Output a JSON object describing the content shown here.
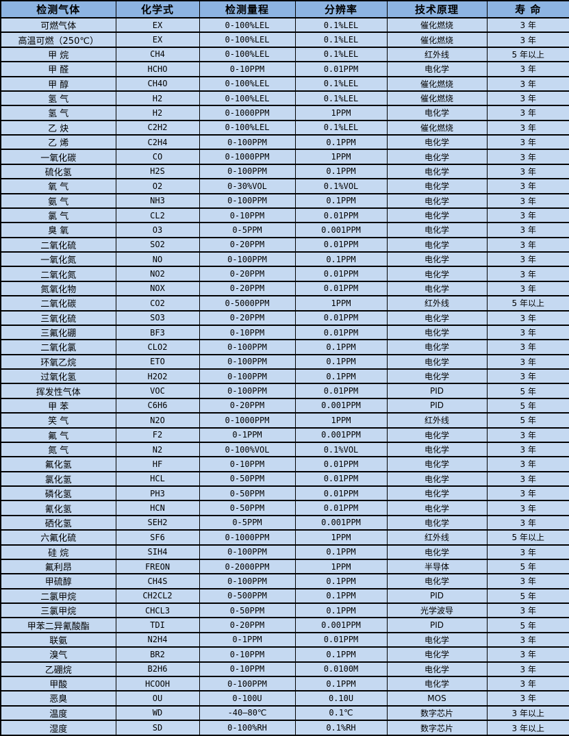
{
  "colors": {
    "header_bg": "#8db4e2",
    "row_bg": "#c5d9f1",
    "border": "#000000",
    "text": "#000000"
  },
  "table": {
    "headers": [
      "检测气体",
      "化学式",
      "检测量程",
      "分辨率",
      "技术原理",
      "寿 命"
    ],
    "column_names": [
      "gas-name",
      "formula",
      "range",
      "resolution",
      "principle",
      "lifespan"
    ],
    "rows": [
      [
        "可燃气体",
        "EX",
        "0-100%LEL",
        "0.1%LEL",
        "催化燃烧",
        "3 年"
      ],
      [
        "高温可燃（250℃）",
        "EX",
        "0-100%LEL",
        "0.1%LEL",
        "催化燃烧",
        "3 年"
      ],
      [
        "甲 烷",
        "CH4",
        "0-100%LEL",
        "0.1%LEL",
        "红外线",
        "5 年以上"
      ],
      [
        "甲 醛",
        "HCHO",
        "0-10PPM",
        "0.01PPM",
        "电化学",
        "3 年"
      ],
      [
        "甲 醇",
        "CH4O",
        "0-100%LEL",
        "0.1%LEL",
        "催化燃烧",
        "3 年"
      ],
      [
        "氢 气",
        "H2",
        "0-100%LEL",
        "0.1%LEL",
        "催化燃烧",
        "3 年"
      ],
      [
        "氢 气",
        "H2",
        "0-1000PPM",
        "1PPM",
        "电化学",
        "3 年"
      ],
      [
        "乙 炔",
        "C2H2",
        "0-100%LEL",
        "0.1%LEL",
        "催化燃烧",
        "3 年"
      ],
      [
        "乙 烯",
        "C2H4",
        "0-100PPM",
        "0.1PPM",
        "电化学",
        "3 年"
      ],
      [
        "一氧化碳",
        "CO",
        "0-1000PPM",
        "1PPM",
        "电化学",
        "3 年"
      ],
      [
        "硫化氢",
        "H2S",
        "0-100PPM",
        "0.1PPM",
        "电化学",
        "3 年"
      ],
      [
        "氧 气",
        "O2",
        "0-30%VOL",
        "0.1%VOL",
        "电化学",
        "3 年"
      ],
      [
        "氨 气",
        "NH3",
        "0-100PPM",
        "0.1PPM",
        "电化学",
        "3 年"
      ],
      [
        "氯 气",
        "CL2",
        "0-10PPM",
        "0.01PPM",
        "电化学",
        "3 年"
      ],
      [
        "臭 氧",
        "O3",
        "0-5PPM",
        "0.001PPM",
        "电化学",
        "3 年"
      ],
      [
        "二氧化硫",
        "SO2",
        "0-20PPM",
        "0.01PPM",
        "电化学",
        "3 年"
      ],
      [
        "一氧化氮",
        "NO",
        "0-100PPM",
        "0.1PPM",
        "电化学",
        "3 年"
      ],
      [
        "二氧化氮",
        "NO2",
        "0-20PPM",
        "0.01PPM",
        "电化学",
        "3 年"
      ],
      [
        "氮氧化物",
        "NOX",
        "0-20PPM",
        "0.01PPM",
        "电化学",
        "3 年"
      ],
      [
        "二氧化碳",
        "CO2",
        "0-5000PPM",
        "1PPM",
        "红外线",
        "5 年以上"
      ],
      [
        "三氧化硫",
        "SO3",
        "0-20PPM",
        "0.01PPM",
        "电化学",
        "3 年"
      ],
      [
        "三氟化硼",
        "BF3",
        "0-10PPM",
        "0.01PPM",
        "电化学",
        "3 年"
      ],
      [
        "二氧化氯",
        "CLO2",
        "0-100PPM",
        "0.1PPM",
        "电化学",
        "3 年"
      ],
      [
        "环氧乙烷",
        "ETO",
        "0-100PPM",
        "0.1PPM",
        "电化学",
        "3 年"
      ],
      [
        "过氧化氢",
        "H2O2",
        "0-100PPM",
        "0.1PPM",
        "电化学",
        "3 年"
      ],
      [
        "挥发性气体",
        "VOC",
        "0-100PPM",
        "0.01PPM",
        "PID",
        "5 年"
      ],
      [
        "甲 苯",
        "C6H6",
        "0-20PPM",
        "0.001PPM",
        "PID",
        "5 年"
      ],
      [
        "笑 气",
        "N2O",
        "0-1000PPM",
        "1PPM",
        "红外线",
        "5 年"
      ],
      [
        "氟 气",
        "F2",
        "0-1PPM",
        "0.001PPM",
        "电化学",
        "3 年"
      ],
      [
        "氮 气",
        "N2",
        "0-100%VOL",
        "0.1%VOL",
        "电化学",
        "3 年"
      ],
      [
        "氟化氢",
        "HF",
        "0-10PPM",
        "0.01PPM",
        "电化学",
        "3 年"
      ],
      [
        "氯化氢",
        "HCL",
        "0-50PPM",
        "0.01PPM",
        "电化学",
        "3 年"
      ],
      [
        "磷化氢",
        "PH3",
        "0-50PPM",
        "0.01PPM",
        "电化学",
        "3 年"
      ],
      [
        "氰化氢",
        "HCN",
        "0-50PPM",
        "0.01PPM",
        "电化学",
        "3 年"
      ],
      [
        "硒化氢",
        "SEH2",
        "0-5PPM",
        "0.001PPM",
        "电化学",
        "3 年"
      ],
      [
        "六氟化硫",
        "SF6",
        "0-1000PPM",
        "1PPM",
        "红外线",
        "5 年以上"
      ],
      [
        "硅 烷",
        "SIH4",
        "0-100PPM",
        "0.1PPM",
        "电化学",
        "3 年"
      ],
      [
        "氟利昂",
        "FREON",
        "0-2000PPM",
        "1PPM",
        "半导体",
        "5 年"
      ],
      [
        "甲硫醇",
        "CH4S",
        "0-100PPM",
        "0.1PPM",
        "电化学",
        "3 年"
      ],
      [
        "二氯甲烷",
        "CH2CL2",
        "0-500PPM",
        "0.1PPM",
        "PID",
        "5 年"
      ],
      [
        "三氯甲烷",
        "CHCL3",
        "0-50PPM",
        "0.1PPM",
        "光学波导",
        "3 年"
      ],
      [
        "甲苯二异氰酸酯",
        "TDI",
        "0-20PPM",
        "0.001PPM",
        "PID",
        "5 年"
      ],
      [
        "联氨",
        "N2H4",
        "0-1PPM",
        "0.01PPM",
        "电化学",
        "3 年"
      ],
      [
        "溴气",
        "BR2",
        "0-10PPM",
        "0.1PPM",
        "电化学",
        "3 年"
      ],
      [
        "乙硼烷",
        "B2H6",
        "0-10PPM",
        "0.0100M",
        "电化学",
        "3 年"
      ],
      [
        "甲酸",
        "HCOOH",
        "0-100PPM",
        "0.1PPM",
        "电化学",
        "3 年"
      ],
      [
        "恶臭",
        "OU",
        "0-100U",
        "0.10U",
        "MOS",
        "3 年"
      ],
      [
        "温度",
        "WD",
        "-40—80℃",
        "0.1℃",
        "数字芯片",
        "3 年以上"
      ],
      [
        "湿度",
        "SD",
        "0-100%RH",
        "0.1%RH",
        "数字芯片",
        "3 年以上"
      ]
    ]
  }
}
